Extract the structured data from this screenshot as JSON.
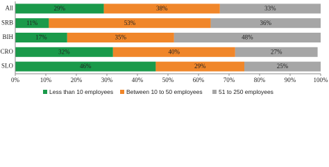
{
  "chart_data": {
    "type": "stacked-bar-horizontal",
    "categories": [
      "All",
      "SRB",
      "BIH",
      "CRO",
      "SLO"
    ],
    "series": [
      {
        "name": "Less than 10 employees",
        "color": "#1a9a4a",
        "values": [
          29,
          11,
          17,
          32,
          46
        ],
        "value_labels": [
          "29%",
          "11%",
          "17%",
          "32%",
          "46%"
        ]
      },
      {
        "name": "Between 10 to 50 employees",
        "color": "#f0862a",
        "values": [
          38,
          53,
          35,
          40,
          29
        ],
        "value_labels": [
          "38%",
          "53%",
          "35%",
          "40%",
          "29%"
        ]
      },
      {
        "name": "51 to 250 employees",
        "color": "#a6a6a6",
        "values": [
          33,
          36,
          48,
          27,
          25
        ],
        "value_labels": [
          "33%",
          "36%",
          "48%",
          "27%",
          "25%"
        ]
      }
    ],
    "xlim": [
      0,
      100
    ],
    "xticks": [
      {
        "value": 0,
        "label": "0%"
      },
      {
        "value": 10,
        "label": "10%"
      },
      {
        "value": 20,
        "label": "20%"
      },
      {
        "value": 30,
        "label": "30%"
      },
      {
        "value": 40,
        "label": "40%"
      },
      {
        "value": 50,
        "label": "50%"
      },
      {
        "value": 60,
        "label": "60%"
      },
      {
        "value": 70,
        "label": "70%"
      },
      {
        "value": 80,
        "label": "80%"
      },
      {
        "value": 90,
        "label": "90%"
      },
      {
        "value": 100,
        "label": "100%"
      }
    ],
    "grid": false,
    "legend": "bottom"
  }
}
